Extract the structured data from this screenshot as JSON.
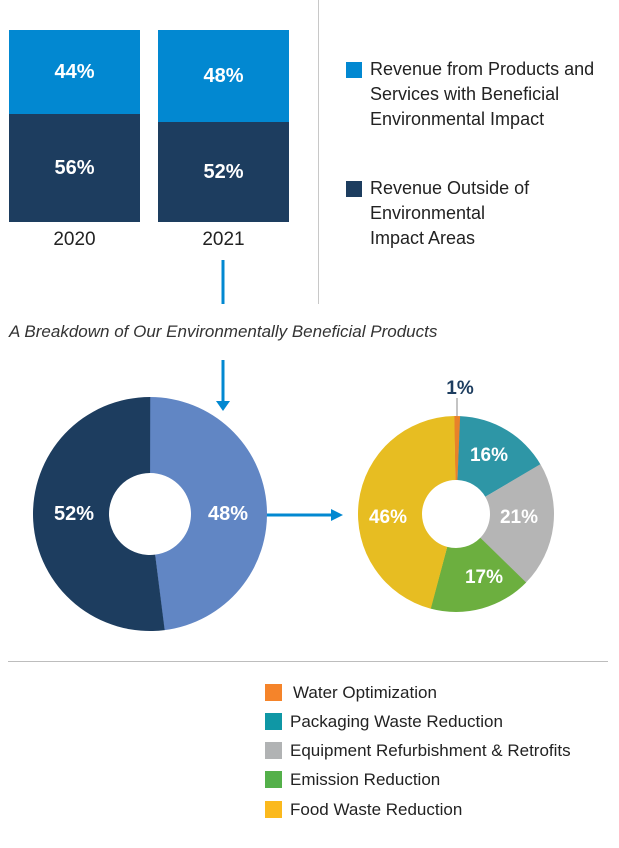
{
  "chart_data": [
    {
      "type": "bar",
      "stacked": true,
      "categories": [
        "2020",
        "2021"
      ],
      "series": [
        {
          "name": "Revenue Outside of Environmental Impact Areas",
          "color": "#1d3d5f",
          "values": [
            56,
            52
          ],
          "labels": [
            "56%",
            "52%"
          ]
        },
        {
          "name": "Revenue from Products and Services with Beneficial Environmental Impact",
          "color": "#0288d1",
          "values": [
            44,
            48
          ],
          "labels": [
            "44%",
            "48%"
          ]
        }
      ],
      "ylim": [
        0,
        100
      ],
      "legend": [
        {
          "label": "Revenue from Products and Services with Beneficial Environmental Impact",
          "color": "#0288d1"
        },
        {
          "label": "Revenue Outside of Environmental Impact Areas",
          "color": "#1d3d5f"
        }
      ],
      "legend_position": "right"
    },
    {
      "type": "pie",
      "donut": true,
      "title": "A Breakdown of Our Environmentally Beneficial Products",
      "slices": [
        {
          "name": "Beneficial Environmental Impact",
          "value": 48,
          "label": "48%",
          "color": "#6186c4"
        },
        {
          "name": "Outside Environmental Impact Areas",
          "value": 52,
          "label": "52%",
          "color": "#1d3d5f"
        }
      ]
    },
    {
      "type": "pie",
      "donut": true,
      "slices": [
        {
          "name": "Water Optimization",
          "value": 1,
          "label": "1%",
          "color": "#e8822a"
        },
        {
          "name": "Packaging Waste Reduction",
          "value": 16,
          "label": "16%",
          "color": "#2e96a6"
        },
        {
          "name": "Equipment Refurbishment & Retrofits",
          "value": 21,
          "label": "21%",
          "color": "#b5b5b5"
        },
        {
          "name": "Emission Reduction",
          "value": 17,
          "label": "17%",
          "color": "#6caf3f"
        },
        {
          "name": "Food Waste Reduction",
          "value": 46,
          "label": "46%",
          "color": "#e7bd22"
        }
      ],
      "legend": [
        {
          "label": "Water Optimization",
          "color": "#f5842a"
        },
        {
          "label": "Packaging Waste Reduction",
          "color": "#0f97a5"
        },
        {
          "label": "Equipment Refurbishment & Retrofits",
          "color": "#b1b3b4"
        },
        {
          "label": "Emission Reduction",
          "color": "#54b04a"
        },
        {
          "label": "Food Waste Reduction",
          "color": "#fbb91d"
        }
      ],
      "legend_position": "bottom-right"
    }
  ],
  "arrow_color": "#0288d1"
}
